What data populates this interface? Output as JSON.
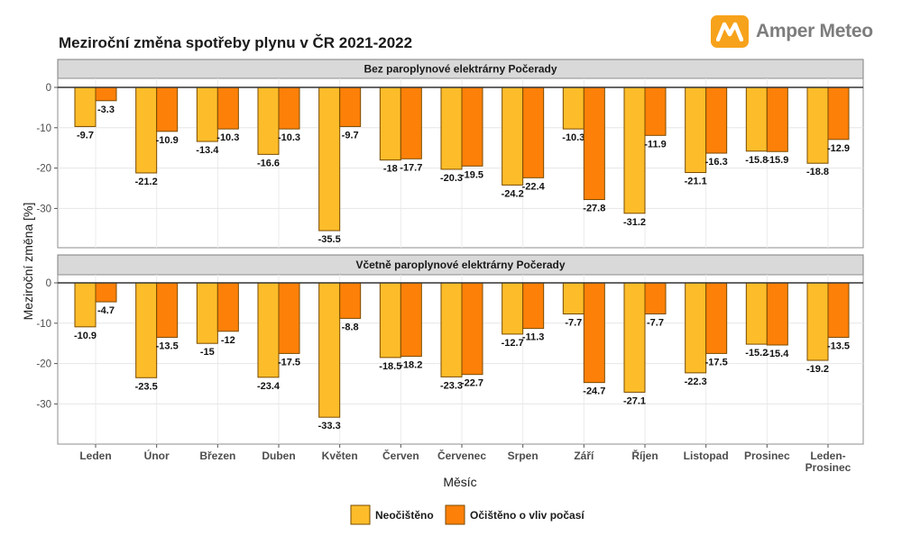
{
  "header": {
    "title": "Meziroční změna spotřeby plynu v ČR 2021-2022",
    "brand": "Amper Meteo",
    "brand_icon": "amper-meteo-logo-icon",
    "brand_color": "#f7a21b"
  },
  "chart_data": {
    "type": "bar",
    "title": "Meziroční změna spotřeby plynu v ČR 2021-2022",
    "xlabel": "Měsíc",
    "ylabel": "Meziroční změna [%]",
    "ylim": [
      -40,
      0
    ],
    "yticks": [
      0,
      -10,
      -20,
      -30
    ],
    "grid": true,
    "legend_position": "bottom",
    "categories": [
      "Leden",
      "Únor",
      "Březen",
      "Duben",
      "Květen",
      "Červen",
      "Červenec",
      "Srpen",
      "Září",
      "Říjen",
      "Listopad",
      "Prosinec",
      "Leden-Prosinec"
    ],
    "series_meta": [
      {
        "name": "Neočištěno",
        "color": "#fdbd2a"
      },
      {
        "name": "Očištěno o vliv počasí",
        "color": "#fd8008"
      }
    ],
    "panels": [
      {
        "label": "Bez paroplynové elektrárny Počerady",
        "series": [
          {
            "name": "Neočištěno",
            "values": [
              -9.7,
              -21.2,
              -13.4,
              -16.6,
              -35.5,
              -18,
              -20.3,
              -24.2,
              -10.3,
              -31.2,
              -21.1,
              -15.8,
              -18.8
            ]
          },
          {
            "name": "Očištěno o vliv počasí",
            "values": [
              -3.3,
              -10.9,
              -10.3,
              -10.3,
              -9.7,
              -17.7,
              -19.5,
              -22.4,
              -27.8,
              -11.9,
              -16.3,
              -15.9,
              -12.9
            ]
          }
        ]
      },
      {
        "label": "Včetně paroplynové elektrárny Počerady",
        "series": [
          {
            "name": "Neočištěno",
            "values": [
              -10.9,
              -23.5,
              -15,
              -23.4,
              -33.3,
              -18.5,
              -23.3,
              -12.7,
              -7.7,
              -27.1,
              -22.3,
              -15.2,
              -19.2
            ]
          },
          {
            "name": "Očištěno o vliv počasí",
            "values": [
              -4.7,
              -13.5,
              -12,
              -17.5,
              -8.8,
              -18.2,
              -22.7,
              -11.3,
              -24.7,
              -7.7,
              -17.5,
              -15.4,
              -13.5
            ]
          }
        ]
      }
    ],
    "legend": [
      "Neočištěno",
      "Očištěno o vliv počasí"
    ]
  }
}
